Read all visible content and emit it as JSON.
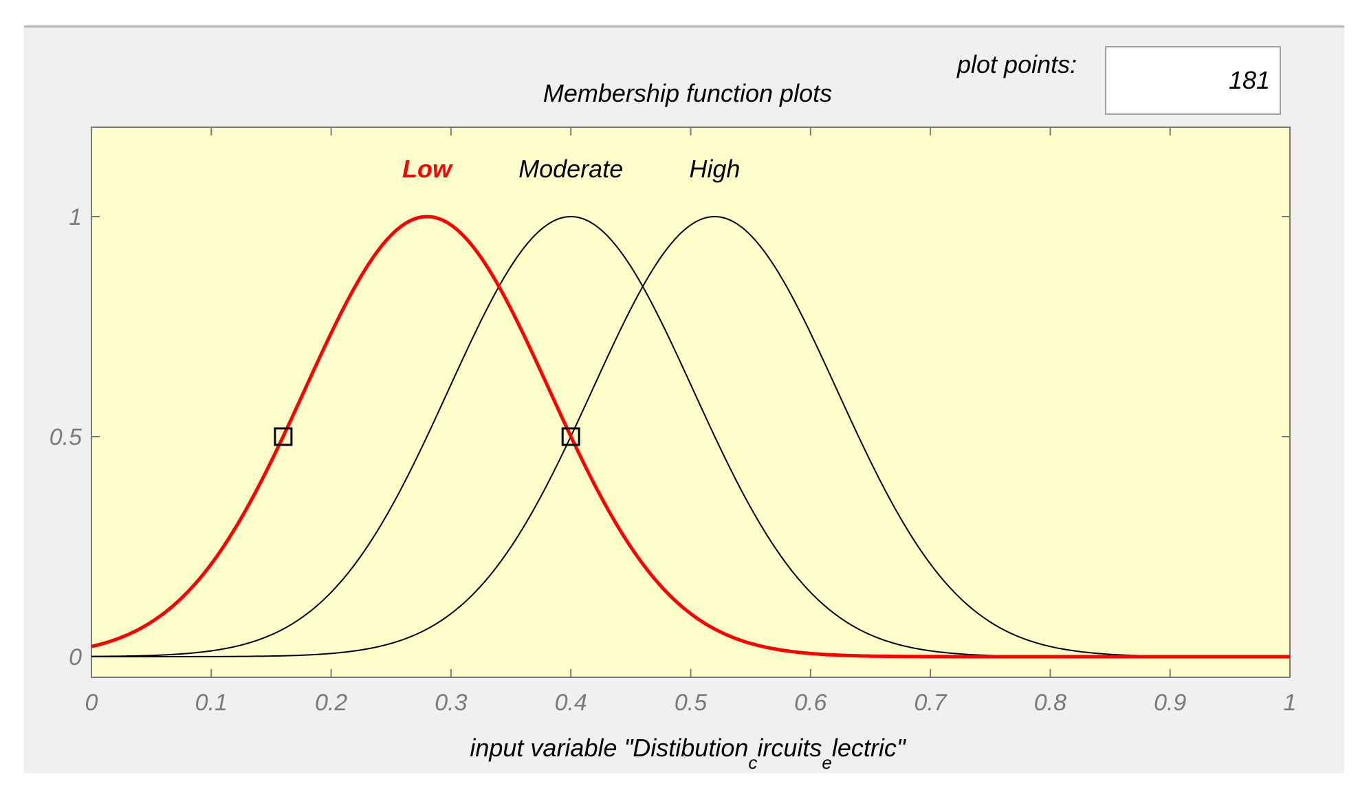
{
  "plot_points": {
    "label": "plot points:",
    "value": "181"
  },
  "chart_data": {
    "type": "line",
    "title": "Membership function plots",
    "xlabel": {
      "main": "input variable \"Distibution",
      "sub1": "c",
      "mid": "ircuits",
      "sub2": "e",
      "end": "lectric\""
    },
    "ylabel": "",
    "xlim": [
      0,
      1
    ],
    "ylim": [
      0,
      1.2
    ],
    "x_ticks": [
      "0",
      "0.1",
      "0.2",
      "0.3",
      "0.4",
      "0.5",
      "0.6",
      "0.7",
      "0.8",
      "0.9",
      "1"
    ],
    "y_ticks": [
      "0",
      "0.5",
      "1"
    ],
    "grid": false,
    "background_color": "#ffffcc",
    "series": [
      {
        "name": "Low",
        "center": 0.28,
        "sigma": 0.102,
        "color": "#ff0000",
        "selected": true
      },
      {
        "name": "Moderate",
        "center": 0.4,
        "sigma": 0.102,
        "color": "#000000",
        "selected": false
      },
      {
        "name": "High",
        "center": 0.52,
        "sigma": 0.102,
        "color": "#000000",
        "selected": false
      }
    ],
    "markers": [
      {
        "x": 0.16,
        "y": 0.5
      },
      {
        "x": 0.4,
        "y": 0.5
      }
    ]
  }
}
